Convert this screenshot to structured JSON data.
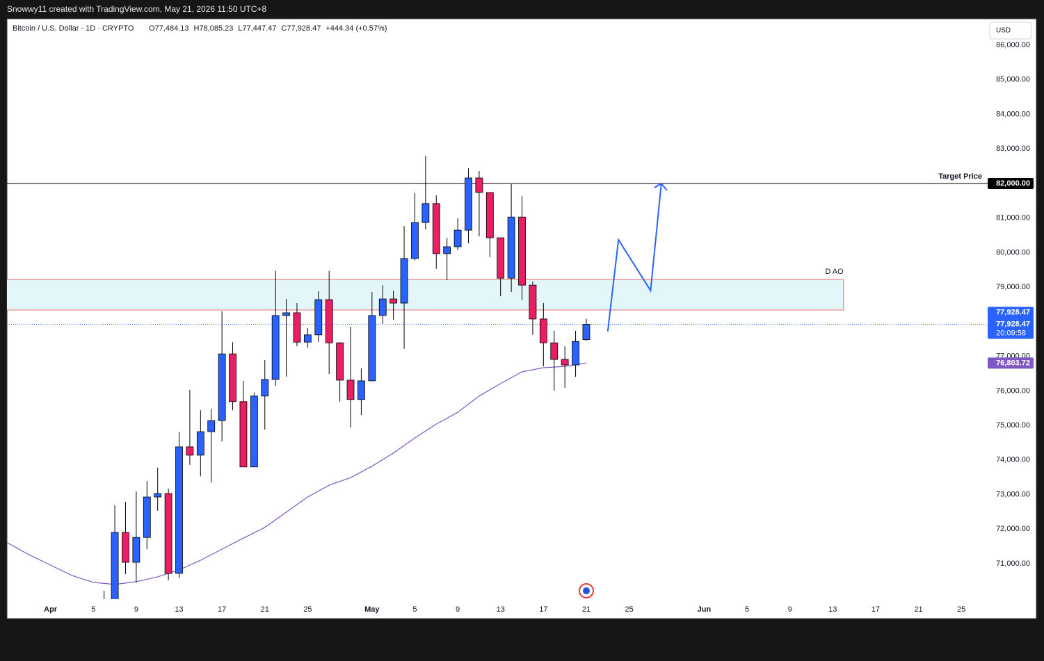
{
  "topbar": {
    "text": "Snowwy11 created with TradingView.com, May 21, 2026 11:50 UTC+8"
  },
  "chart_data": {
    "type": "candlestick",
    "title": "Bitcoin / U.S. Dollar · 1D · CRYPTO",
    "ohlc_legend": [
      "O77,484.13",
      "H78,085.23",
      "L77,447.47",
      "C77,928.47",
      "+444.34 (+0.57%)"
    ],
    "currency": "USD",
    "x": [
      "2026-04-06",
      "2026-04-07",
      "2026-04-08",
      "2026-04-09",
      "2026-04-10",
      "2026-04-11",
      "2026-04-12",
      "2026-04-13",
      "2026-04-14",
      "2026-04-15",
      "2026-04-16",
      "2026-04-17",
      "2026-04-18",
      "2026-04-19",
      "2026-04-20",
      "2026-04-21",
      "2026-04-22",
      "2026-04-23",
      "2026-04-24",
      "2026-04-25",
      "2026-04-26",
      "2026-04-27",
      "2026-04-28",
      "2026-04-29",
      "2026-04-30",
      "2026-05-01",
      "2026-05-02",
      "2026-05-03",
      "2026-05-04",
      "2026-05-05",
      "2026-05-06",
      "2026-05-07",
      "2026-05-08",
      "2026-05-09",
      "2026-05-10",
      "2026-05-11",
      "2026-05-12",
      "2026-05-13",
      "2026-05-14",
      "2026-05-15",
      "2026-05-16",
      "2026-05-17",
      "2026-05-18",
      "2026-05-19",
      "2026-05-20",
      "2026-05-21"
    ],
    "open": [
      69700,
      69900,
      71905,
      71040,
      71760,
      72930,
      73030,
      70720,
      74380,
      74140,
      74820,
      75140,
      77070,
      75690,
      73800,
      75850,
      76330,
      78180,
      78260,
      77410,
      77620,
      78640,
      77390,
      76310,
      75750,
      76290,
      78180,
      78660,
      78540,
      79830,
      80870,
      81420,
      79970,
      80170,
      80650,
      82160,
      81740,
      80430,
      79260,
      81030,
      79060,
      78080,
      77390,
      76910,
      76750,
      77484.13
    ],
    "high": [
      70220,
      72690,
      72790,
      73090,
      73390,
      73780,
      73170,
      74800,
      76030,
      75440,
      75480,
      78300,
      77410,
      76290,
      75950,
      76890,
      79470,
      78660,
      78540,
      77820,
      78880,
      79470,
      77410,
      77860,
      76650,
      78860,
      79060,
      78900,
      80770,
      81720,
      82800,
      81660,
      80430,
      80990,
      82440,
      82360,
      81740,
      80430,
      81980,
      81640,
      79160,
      78540,
      77740,
      77290,
      77740,
      78085.23
    ],
    "low": [
      69400,
      69800,
      70700,
      70460,
      71420,
      72530,
      70520,
      70580,
      73860,
      73530,
      73350,
      74540,
      75440,
      73800,
      73800,
      74880,
      76150,
      76410,
      77290,
      77250,
      77410,
      76490,
      75690,
      74940,
      75300,
      76290,
      77940,
      78060,
      77220,
      79770,
      80670,
      79530,
      79200,
      80070,
      80270,
      80470,
      79870,
      78740,
      78860,
      78620,
      77620,
      76710,
      76010,
      76090,
      76410,
      77447.47
    ],
    "close": [
      69900,
      71905,
      71040,
      71760,
      72930,
      73030,
      70720,
      74380,
      74140,
      74820,
      75140,
      77070,
      75690,
      73800,
      75850,
      76330,
      78180,
      78260,
      77410,
      77620,
      78640,
      77390,
      76310,
      75750,
      76290,
      78180,
      78660,
      78540,
      79830,
      80870,
      81420,
      79970,
      80170,
      80650,
      82160,
      81740,
      80430,
      79260,
      81030,
      79060,
      78080,
      77390,
      76910,
      76750,
      77430,
      77928.47
    ],
    "up_color": "#2962ff",
    "down_color": "#e91e63",
    "ma": {
      "x": [
        "2026-03-28",
        "2026-03-30",
        "2026-04-01",
        "2026-04-03",
        "2026-04-05",
        "2026-04-07",
        "2026-04-09",
        "2026-04-11",
        "2026-04-13",
        "2026-04-15",
        "2026-04-17",
        "2026-04-19",
        "2026-04-21",
        "2026-04-23",
        "2026-04-25",
        "2026-04-27",
        "2026-04-29",
        "2026-05-01",
        "2026-05-03",
        "2026-05-05",
        "2026-05-07",
        "2026-05-09",
        "2026-05-11",
        "2026-05-13",
        "2026-05-15",
        "2026-05-17",
        "2026-05-19",
        "2026-05-21"
      ],
      "values": [
        71600,
        71260,
        70960,
        70660,
        70460,
        70400,
        70480,
        70620,
        70820,
        71100,
        71420,
        71740,
        72050,
        72490,
        72930,
        73270,
        73490,
        73820,
        74200,
        74640,
        75040,
        75380,
        75850,
        76210,
        76550,
        76670,
        76710,
        76803.72
      ],
      "color": "#7e57c2",
      "value_label": "76,803.72"
    },
    "last_price_labels": [
      "77,928.47",
      "77,928.47"
    ],
    "countdown": "20:09:58",
    "target": {
      "value": 82000,
      "label": "Target Price",
      "value_label": "82,000.00",
      "color": "#000000"
    },
    "zone": {
      "label": "D AO",
      "x": [
        "2026-03-28",
        "2026-06-14"
      ],
      "ylim": [
        78340,
        79220
      ],
      "fill": "#e3f7fb",
      "stroke": "#e57373"
    },
    "projection": {
      "x": [
        "2026-05-23",
        "2026-05-24",
        "2026-05-27",
        "2026-05-28"
      ],
      "values": [
        77720,
        80370,
        78900,
        82000
      ],
      "color": "#2962ff"
    },
    "xlim": [
      "2026-03-28",
      "2026-06-27"
    ],
    "xticks": [
      {
        "value": "2026-04-01",
        "label": "Apr"
      },
      {
        "value": "2026-04-05",
        "label": "5"
      },
      {
        "value": "2026-04-09",
        "label": "9"
      },
      {
        "value": "2026-04-13",
        "label": "13"
      },
      {
        "value": "2026-04-17",
        "label": "17"
      },
      {
        "value": "2026-04-21",
        "label": "21"
      },
      {
        "value": "2026-04-25",
        "label": "25"
      },
      {
        "value": "2026-05-01",
        "label": "May"
      },
      {
        "value": "2026-05-05",
        "label": "5"
      },
      {
        "value": "2026-05-09",
        "label": "9"
      },
      {
        "value": "2026-05-13",
        "label": "13"
      },
      {
        "value": "2026-05-17",
        "label": "17"
      },
      {
        "value": "2026-05-21",
        "label": "21"
      },
      {
        "value": "2026-05-25",
        "label": "25"
      },
      {
        "value": "2026-06-01",
        "label": "Jun"
      },
      {
        "value": "2026-06-05",
        "label": "5"
      },
      {
        "value": "2026-06-09",
        "label": "9"
      },
      {
        "value": "2026-06-13",
        "label": "13"
      },
      {
        "value": "2026-06-17",
        "label": "17"
      },
      {
        "value": "2026-06-21",
        "label": "21"
      },
      {
        "value": "2026-06-25",
        "label": "25"
      }
    ],
    "ylim": [
      69975,
      86765
    ],
    "yticks": [
      {
        "value": 71000,
        "label": "71,000.00"
      },
      {
        "value": 72000,
        "label": "72,000.00"
      },
      {
        "value": 73000,
        "label": "73,000.00"
      },
      {
        "value": 74000,
        "label": "74,000.00"
      },
      {
        "value": 75000,
        "label": "75,000.00"
      },
      {
        "value": 76000,
        "label": "76,000.00"
      },
      {
        "value": 77000,
        "label": "77,000.00"
      },
      {
        "value": 79000,
        "label": "79,000.00"
      },
      {
        "value": 80000,
        "label": "80,000.00"
      },
      {
        "value": 81000,
        "label": "81,000.00"
      },
      {
        "value": 83000,
        "label": "83,000.00"
      },
      {
        "value": 84000,
        "label": "84,000.00"
      },
      {
        "value": 85000,
        "label": "85,000.00"
      },
      {
        "value": 86000,
        "label": "86,000.00"
      }
    ]
  }
}
